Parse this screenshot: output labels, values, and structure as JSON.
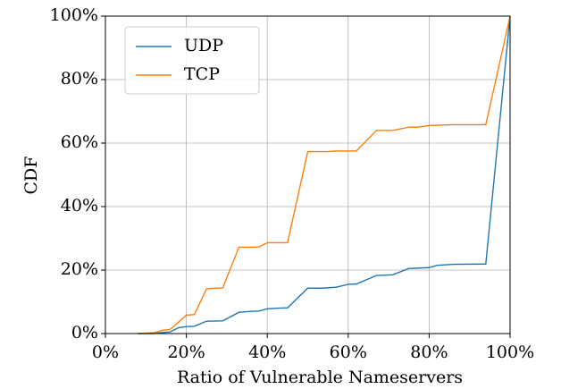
{
  "chart_data": {
    "type": "line",
    "xlabel": "Ratio of Vulnerable Nameservers",
    "ylabel": "CDF",
    "x": [
      8,
      12,
      13,
      14,
      16,
      18,
      20,
      22,
      25,
      29,
      33,
      36,
      38,
      40,
      43,
      45,
      50,
      53,
      55,
      57,
      60,
      62,
      67,
      71,
      75,
      77,
      80,
      82,
      86,
      94,
      100
    ],
    "series": [
      {
        "name": "UDP",
        "color": "#1f77b4",
        "values": [
          0,
          0,
          0.2,
          0.3,
          0.5,
          1.8,
          2.2,
          2.3,
          3.9,
          4.0,
          6.7,
          7.0,
          7.1,
          7.8,
          8.0,
          8.1,
          14.3,
          14.3,
          14.4,
          14.6,
          15.5,
          15.6,
          18.3,
          18.5,
          20.5,
          20.6,
          20.8,
          21.5,
          21.8,
          21.9,
          100
        ]
      },
      {
        "name": "TCP",
        "color": "#ff7f0e",
        "values": [
          0,
          0.3,
          0.6,
          1.0,
          1.3,
          3.5,
          5.8,
          6.0,
          14.1,
          14.4,
          27.2,
          27.2,
          27.3,
          28.6,
          28.6,
          28.6,
          57.3,
          57.3,
          57.3,
          57.5,
          57.5,
          57.5,
          64.0,
          64.0,
          65.0,
          65.0,
          65.5,
          65.6,
          65.8,
          65.8,
          100
        ]
      }
    ],
    "xlim": [
      0,
      100
    ],
    "ylim": [
      0,
      100
    ],
    "xticks": [
      {
        "value": 0,
        "label": "0%"
      },
      {
        "value": 20,
        "label": "20%"
      },
      {
        "value": 40,
        "label": "40%"
      },
      {
        "value": 60,
        "label": "60%"
      },
      {
        "value": 80,
        "label": "80%"
      },
      {
        "value": 100,
        "label": "100%"
      }
    ],
    "yticks": [
      {
        "value": 0,
        "label": "0%"
      },
      {
        "value": 20,
        "label": "20%"
      },
      {
        "value": 40,
        "label": "40%"
      },
      {
        "value": 60,
        "label": "60%"
      },
      {
        "value": 80,
        "label": "80%"
      },
      {
        "value": 100,
        "label": "100%"
      }
    ],
    "grid": true,
    "legend": "upper left"
  }
}
